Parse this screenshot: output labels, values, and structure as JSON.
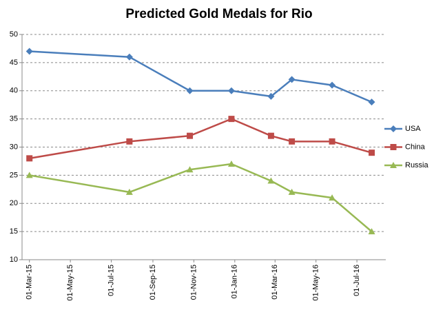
{
  "chart_data": {
    "type": "line",
    "title": "Predicted Gold Medals for Rio",
    "x": [
      "2015-03-01",
      "2015-07-28",
      "2015-10-26",
      "2015-12-27",
      "2016-02-24",
      "2016-03-26",
      "2016-05-25",
      "2016-07-23"
    ],
    "series": [
      {
        "name": "USA",
        "color": "#4a7ebb",
        "marker": "diamond",
        "values": [
          47,
          46,
          40,
          40,
          39,
          42,
          41,
          38
        ]
      },
      {
        "name": "China",
        "color": "#be4b48",
        "marker": "square",
        "values": [
          28,
          31,
          32,
          35,
          32,
          31,
          31,
          29
        ]
      },
      {
        "name": "Russia",
        "color": "#98b954",
        "marker": "triangle",
        "values": [
          25,
          22,
          26,
          27,
          24,
          22,
          21,
          15
        ]
      }
    ],
    "xlim": [
      "2015-02-18",
      "2016-08-13"
    ],
    "xticks": [
      {
        "value": "2015-03-01",
        "label": "01-Mar-15"
      },
      {
        "value": "2015-05-01",
        "label": "01-May-15"
      },
      {
        "value": "2015-07-01",
        "label": "01-Jul-15"
      },
      {
        "value": "2015-09-01",
        "label": "01-Sep-15"
      },
      {
        "value": "2015-11-01",
        "label": "01-Nov-15"
      },
      {
        "value": "2016-01-01",
        "label": "01-Jan-16"
      },
      {
        "value": "2016-03-01",
        "label": "01-Mar-16"
      },
      {
        "value": "2016-05-01",
        "label": "01-May-16"
      },
      {
        "value": "2016-07-01",
        "label": "01-Jul-16"
      }
    ],
    "ylim": [
      10,
      50
    ],
    "yticks": [
      10,
      15,
      20,
      25,
      30,
      35,
      40,
      45,
      50
    ],
    "grid": true,
    "legend": "right"
  }
}
